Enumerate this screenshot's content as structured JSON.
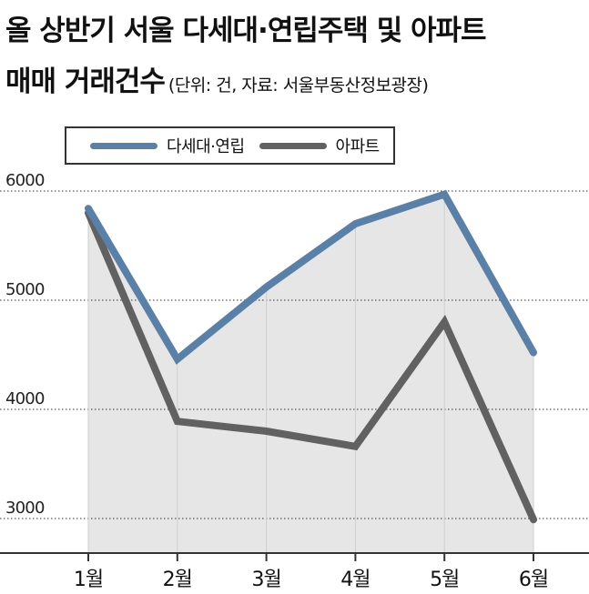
{
  "title": {
    "line1": "올 상반기 서울 다세대·연립주택 및 아파트",
    "line2": "매매 거래건수",
    "note": "(단위: 건, 자료: 서울부동산정보광장)"
  },
  "colors": {
    "villa": "#5a80a8",
    "apartment": "#616161",
    "fill": "#e6e6e6",
    "grid": "#555555",
    "axis": "#333333"
  },
  "chart_data": {
    "type": "line",
    "categories": [
      "1월",
      "2월",
      "3월",
      "4월",
      "5월",
      "6월"
    ],
    "series": [
      {
        "name": "다세대·연립",
        "values": [
          5840,
          4460,
          5120,
          5700,
          5970,
          4520
        ]
      },
      {
        "name": "아파트",
        "values": [
          5800,
          3890,
          3800,
          3660,
          4800,
          2990
        ]
      }
    ],
    "yticks": [
      6000,
      5000,
      4000,
      3000
    ],
    "ylim": [
      2650,
      6240
    ],
    "grid": "horizontal dotted",
    "area_fill": "under upper series",
    "legend": "top-left, boxed",
    "xlabel": "",
    "ylabel": ""
  }
}
